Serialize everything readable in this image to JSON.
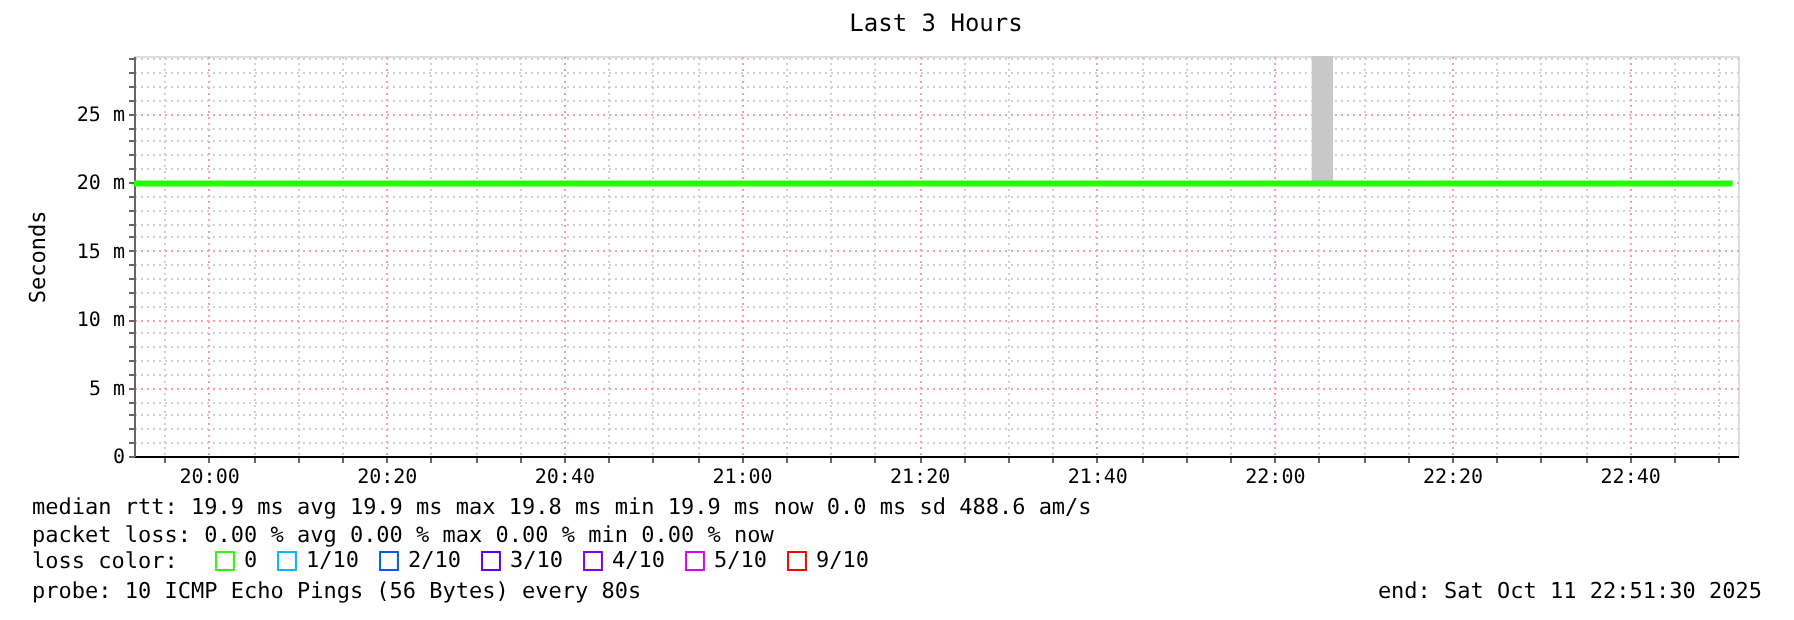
{
  "chart_data": {
    "type": "line",
    "title": "Last 3 Hours",
    "ylabel": "Seconds",
    "x": [
      19.86,
      20.35,
      20.85,
      21.35,
      21.85,
      22.07,
      22.11,
      22.35,
      22.86
    ],
    "xlim": [
      19.86,
      22.87
    ],
    "ylim": [
      0,
      29.2
    ],
    "xticks": [
      {
        "value": 19.916667,
        "label": null
      },
      {
        "value": 20.0,
        "label": "20:00"
      },
      {
        "value": 20.083333,
        "label": null
      },
      {
        "value": 20.166667,
        "label": null
      },
      {
        "value": 20.25,
        "label": null
      },
      {
        "value": 20.333333,
        "label": "20:20"
      },
      {
        "value": 20.416667,
        "label": null
      },
      {
        "value": 20.5,
        "label": null
      },
      {
        "value": 20.583333,
        "label": null
      },
      {
        "value": 20.666667,
        "label": "20:40"
      },
      {
        "value": 20.75,
        "label": null
      },
      {
        "value": 20.833333,
        "label": null
      },
      {
        "value": 20.916667,
        "label": null
      },
      {
        "value": 21.0,
        "label": "21:00"
      },
      {
        "value": 21.083333,
        "label": null
      },
      {
        "value": 21.166667,
        "label": null
      },
      {
        "value": 21.25,
        "label": null
      },
      {
        "value": 21.333333,
        "label": "21:20"
      },
      {
        "value": 21.416667,
        "label": null
      },
      {
        "value": 21.5,
        "label": null
      },
      {
        "value": 21.583333,
        "label": null
      },
      {
        "value": 21.666667,
        "label": "21:40"
      },
      {
        "value": 21.75,
        "label": null
      },
      {
        "value": 21.833333,
        "label": null
      },
      {
        "value": 21.916667,
        "label": null
      },
      {
        "value": 22.0,
        "label": "22:00"
      },
      {
        "value": 22.083333,
        "label": null
      },
      {
        "value": 22.166667,
        "label": null
      },
      {
        "value": 22.25,
        "label": null
      },
      {
        "value": 22.333333,
        "label": "22:20"
      },
      {
        "value": 22.416667,
        "label": null
      },
      {
        "value": 22.5,
        "label": null
      },
      {
        "value": 22.583333,
        "label": null
      },
      {
        "value": 22.666667,
        "label": "22:40"
      },
      {
        "value": 22.75,
        "label": null
      },
      {
        "value": 22.833333,
        "label": null
      }
    ],
    "yticks": [
      0,
      {
        "value": 1,
        "label": null
      },
      {
        "value": 2,
        "label": null
      },
      {
        "value": 3,
        "label": null
      },
      {
        "value": 4,
        "label": null
      },
      {
        "value": 5,
        "label": "5 m"
      },
      {
        "value": 6,
        "label": null
      },
      {
        "value": 7,
        "label": null
      },
      {
        "value": 8,
        "label": null
      },
      {
        "value": 9,
        "label": null
      },
      {
        "value": 10,
        "label": "10 m"
      },
      {
        "value": 11,
        "label": null
      },
      {
        "value": 12,
        "label": null
      },
      {
        "value": 13,
        "label": null
      },
      {
        "value": 14,
        "label": null
      },
      {
        "value": 15,
        "label": "15 m"
      },
      {
        "value": 16,
        "label": null
      },
      {
        "value": 17,
        "label": null
      },
      {
        "value": 18,
        "label": null
      },
      {
        "value": 19,
        "label": null
      },
      {
        "value": 20,
        "label": "20 m"
      },
      {
        "value": 21,
        "label": null
      },
      {
        "value": 22,
        "label": null
      },
      {
        "value": 23,
        "label": null
      },
      {
        "value": 24,
        "label": null
      },
      {
        "value": 25,
        "label": "25 m"
      },
      {
        "value": 26,
        "label": null
      },
      {
        "value": 27,
        "label": null
      },
      {
        "value": 28,
        "label": null
      },
      {
        "value": 29,
        "label": null
      }
    ],
    "grid": true,
    "line_style": "solid",
    "marker": "none",
    "legend": "bottom",
    "legend_title": "loss color:",
    "series": [
      {
        "name": "0",
        "color": "#26ff00",
        "values": [
          19.9,
          19.9,
          19.9,
          19.9,
          19.9,
          19.9,
          19.9,
          19.9,
          19.9
        ],
        "lower": [
          19.9,
          19.9,
          19.9,
          19.9,
          19.9,
          19.9,
          19.9,
          19.9,
          19.9
        ],
        "upper": [
          19.9,
          19.9,
          19.9,
          19.9,
          19.9,
          29.2,
          19.9,
          19.9,
          19.9
        ]
      },
      {
        "name": "1/10",
        "color": "#00b8ff",
        "values": [
          null,
          null,
          null,
          null,
          null,
          null,
          null,
          null,
          null
        ]
      },
      {
        "name": "2/10",
        "color": "#0059ff",
        "values": [
          null,
          null,
          null,
          null,
          null,
          null,
          null,
          null,
          null
        ]
      },
      {
        "name": "3/10",
        "color": "#5e00ff",
        "values": [
          null,
          null,
          null,
          null,
          null,
          null,
          null,
          null,
          null
        ]
      },
      {
        "name": "4/10",
        "color": "#7e00ff",
        "values": [
          null,
          null,
          null,
          null,
          null,
          null,
          null,
          null,
          null
        ]
      },
      {
        "name": "5/10",
        "color": "#dd00ff",
        "values": [
          null,
          null,
          null,
          null,
          null,
          null,
          null,
          null,
          null
        ]
      },
      {
        "name": "9/10",
        "color": "#ff0000",
        "values": [
          null,
          null,
          null,
          null,
          null,
          null,
          null,
          null,
          null
        ]
      }
    ],
    "annotations": [
      "median rtt:  19.9 ms avg  19.9 ms max  19.8 ms min  19.9 ms now  0.0 ms sd  488.6   am/s",
      "packet loss: 0.00 % avg  0.00 % max  0.00 % min  0.00 % now",
      "probe:       10 ICMP Echo Pings (56 Bytes) every 80s",
      "end: Sat Oct 11 22:51:30 2025"
    ]
  }
}
